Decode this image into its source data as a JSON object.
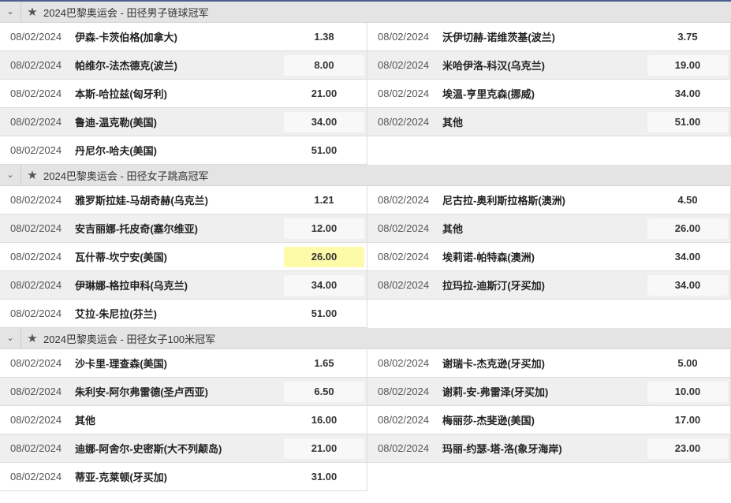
{
  "date": "08/02/2024",
  "colors": {
    "header_bg": "#e4e4e4",
    "highlight": "#fdfaa8",
    "alt_row": "#efefef"
  },
  "sections": [
    {
      "title": "2024巴黎奥运会 - 田径男子链球冠军",
      "items": [
        {
          "name": "伊森-卡茨伯格(加拿大)",
          "odds": "1.38"
        },
        {
          "name": "沃伊切赫-诺维茨基(波兰)",
          "odds": "3.75"
        },
        {
          "name": "帕维尔-法杰德克(波兰)",
          "odds": "8.00"
        },
        {
          "name": "米哈伊洛-科汉(乌克兰)",
          "odds": "19.00"
        },
        {
          "name": "本斯-哈拉兹(匈牙利)",
          "odds": "21.00"
        },
        {
          "name": "埃温-亨里克森(挪威)",
          "odds": "34.00"
        },
        {
          "name": "鲁迪-温克勒(美国)",
          "odds": "34.00"
        },
        {
          "name": "其他",
          "odds": "51.00"
        },
        {
          "name": "丹尼尔-哈夫(美国)",
          "odds": "51.00"
        }
      ]
    },
    {
      "title": "2024巴黎奥运会 - 田径女子跳高冠军",
      "items": [
        {
          "name": "雅罗斯拉娃-马胡奇赫(乌克兰)",
          "odds": "1.21"
        },
        {
          "name": "尼古拉-奥利斯拉格斯(澳洲)",
          "odds": "4.50"
        },
        {
          "name": "安吉丽娜-托皮奇(塞尔维亚)",
          "odds": "12.00"
        },
        {
          "name": "其他",
          "odds": "26.00"
        },
        {
          "name": "瓦什蒂-坎宁安(美国)",
          "odds": "26.00",
          "highlighted": true
        },
        {
          "name": "埃莉诺-帕特森(澳洲)",
          "odds": "34.00"
        },
        {
          "name": "伊琳娜-格拉申科(乌克兰)",
          "odds": "34.00"
        },
        {
          "name": "拉玛拉-迪斯汀(牙买加)",
          "odds": "34.00"
        },
        {
          "name": "艾拉-朱尼拉(芬兰)",
          "odds": "51.00"
        }
      ]
    },
    {
      "title": "2024巴黎奥运会 - 田径女子100米冠军",
      "items": [
        {
          "name": "沙卡里-理查森(美国)",
          "odds": "1.65"
        },
        {
          "name": "谢瑞卡-杰克逊(牙买加)",
          "odds": "5.00"
        },
        {
          "name": "朱利安-阿尔弗雷德(圣卢西亚)",
          "odds": "6.50"
        },
        {
          "name": "谢莉-安-弗雷泽(牙买加)",
          "odds": "10.00"
        },
        {
          "name": "其他",
          "odds": "16.00"
        },
        {
          "name": "梅丽莎-杰斐逊(美国)",
          "odds": "17.00"
        },
        {
          "name": "迪娜-阿舍尔-史密斯(大不列颠岛)",
          "odds": "21.00"
        },
        {
          "name": "玛丽-约瑟-塔-洛(象牙海岸)",
          "odds": "23.00"
        },
        {
          "name": "蒂亚-克莱顿(牙买加)",
          "odds": "31.00"
        }
      ]
    }
  ]
}
